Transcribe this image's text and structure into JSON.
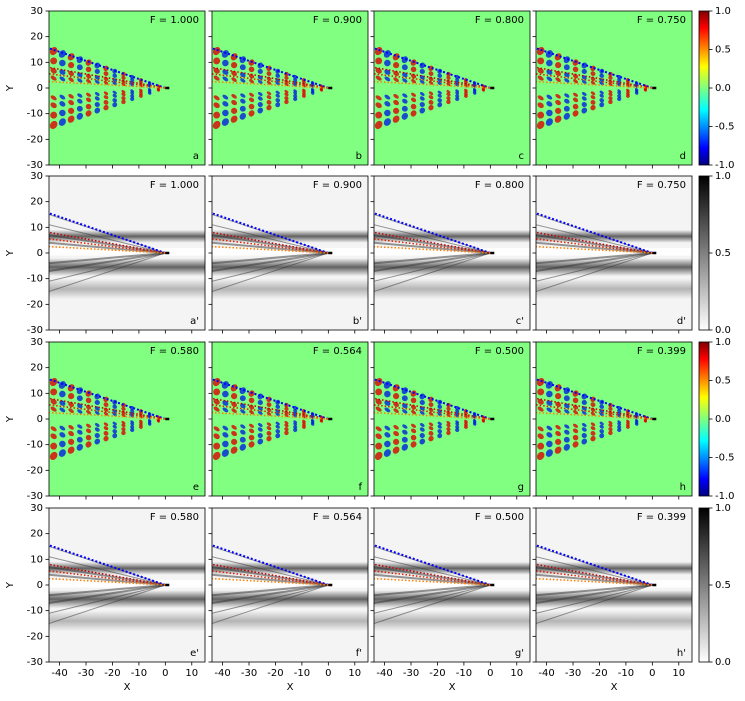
{
  "chart_data": {
    "type": "heatmap",
    "xlabel": "X",
    "ylabel": "Y",
    "xlim": [
      -44,
      15
    ],
    "ylim": [
      -30,
      30
    ],
    "xticks": [
      -40,
      -30,
      -20,
      -10,
      0,
      10
    ],
    "yticks": [
      -30,
      -20,
      -10,
      0,
      10,
      20,
      30
    ],
    "rows": [
      {
        "colormap": "jet",
        "clim": [
          -1,
          1
        ],
        "cticks": [
          {
            "value": -1,
            "label": "-1.0"
          },
          {
            "value": -0.5,
            "label": "-0.5"
          },
          {
            "value": 0,
            "label": "0.0"
          },
          {
            "value": 0.5,
            "label": "0.5"
          },
          {
            "value": 1,
            "label": "1.0"
          }
        ],
        "panels": [
          {
            "annotation": "F = 1.000",
            "label": "a"
          },
          {
            "annotation": "F = 0.900",
            "label": "b"
          },
          {
            "annotation": "F = 0.800",
            "label": "c"
          },
          {
            "annotation": "F = 0.750",
            "label": "d"
          }
        ]
      },
      {
        "colormap": "gray",
        "clim": [
          0,
          1
        ],
        "cticks": [
          {
            "value": 0,
            "label": "0.0"
          },
          {
            "value": 0.5,
            "label": "0.5"
          },
          {
            "value": 1,
            "label": "1.0"
          }
        ],
        "panels": [
          {
            "annotation": "F = 1.000",
            "label": "a'"
          },
          {
            "annotation": "F = 0.900",
            "label": "b'"
          },
          {
            "annotation": "F = 0.800",
            "label": "c'"
          },
          {
            "annotation": "F = 0.750",
            "label": "d'"
          }
        ]
      },
      {
        "colormap": "jet",
        "clim": [
          -1,
          1
        ],
        "cticks": [
          {
            "value": -1,
            "label": "-1.0"
          },
          {
            "value": -0.5,
            "label": "-0.5"
          },
          {
            "value": 0,
            "label": "0.0"
          },
          {
            "value": 0.5,
            "label": "0.5"
          },
          {
            "value": 1,
            "label": "1.0"
          }
        ],
        "panels": [
          {
            "annotation": "F = 0.580",
            "label": "e"
          },
          {
            "annotation": "F = 0.564",
            "label": "f"
          },
          {
            "annotation": "F = 0.500",
            "label": "g"
          },
          {
            "annotation": "F = 0.399",
            "label": "h"
          }
        ]
      },
      {
        "colormap": "gray",
        "clim": [
          0,
          1
        ],
        "cticks": [
          {
            "value": 0,
            "label": "0.0"
          },
          {
            "value": 0.5,
            "label": "0.5"
          },
          {
            "value": 1,
            "label": "1.0"
          }
        ],
        "panels": [
          {
            "annotation": "F = 0.580",
            "label": "e'"
          },
          {
            "annotation": "F = 0.564",
            "label": "f'"
          },
          {
            "annotation": "F = 0.500",
            "label": "g'"
          },
          {
            "annotation": "F = 0.399",
            "label": "h'"
          }
        ]
      }
    ]
  }
}
